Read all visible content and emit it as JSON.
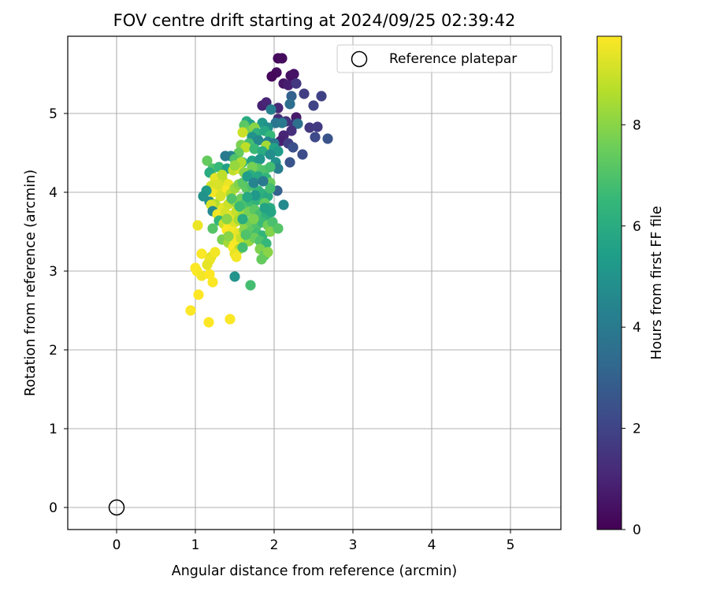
{
  "chart_data": {
    "type": "scatter",
    "title": "FOV centre drift starting at 2024/09/25 02:39:42",
    "xlabel": "Angular distance from reference (arcmin)",
    "ylabel": "Rotation from reference (arcmin)",
    "xlim": [
      -0.62,
      5.64
    ],
    "ylim": [
      -0.28,
      5.98
    ],
    "xticks": [
      0,
      1,
      2,
      3,
      4,
      5
    ],
    "yticks": [
      0,
      1,
      2,
      3,
      4,
      5
    ],
    "grid": true,
    "legend": {
      "location": "top-right",
      "entries": [
        "Reference platepar"
      ]
    },
    "colorbar": {
      "label": "Hours from first FF file",
      "range": [
        0,
        9.75
      ],
      "ticks": [
        0,
        2,
        4,
        6,
        8
      ],
      "colormap": "viridis",
      "stops": [
        "#440154",
        "#482878",
        "#3e4989",
        "#31688e",
        "#26828e",
        "#1f9e89",
        "#35b779",
        "#6ece58",
        "#b5de2b",
        "#fde725"
      ]
    },
    "reference_point": {
      "x": 0,
      "y": 0,
      "label": "Reference platepar"
    },
    "series": [
      {
        "values": [
          [
            2.05,
            5.7,
            0.2
          ],
          [
            2.1,
            5.7,
            0.3
          ],
          [
            2.03,
            5.52,
            0.3
          ],
          [
            1.97,
            5.47,
            0.2
          ],
          [
            2.21,
            5.48,
            0.4
          ],
          [
            2.25,
            5.5,
            0.5
          ],
          [
            2.12,
            5.38,
            0.6
          ],
          [
            2.18,
            5.36,
            0.8
          ],
          [
            2.28,
            5.38,
            1.6
          ],
          [
            2.38,
            5.25,
            1.8
          ],
          [
            2.6,
            5.22,
            1.9
          ],
          [
            2.22,
            5.22,
            3.0
          ],
          [
            2.2,
            5.12,
            3.5
          ],
          [
            1.85,
            5.1,
            0.9
          ],
          [
            1.9,
            5.14,
            1.0
          ],
          [
            2.05,
            5.07,
            1.1
          ],
          [
            1.96,
            5.05,
            4.2
          ],
          [
            2.5,
            5.1,
            2.0
          ],
          [
            2.28,
            4.95,
            0.7
          ],
          [
            2.05,
            4.93,
            1.2
          ],
          [
            2.15,
            4.9,
            1.4
          ],
          [
            2.25,
            4.86,
            1.5
          ],
          [
            2.45,
            4.82,
            1.6
          ],
          [
            2.55,
            4.83,
            1.7
          ],
          [
            2.3,
            4.87,
            3.6
          ],
          [
            2.02,
            4.88,
            3.8
          ],
          [
            2.1,
            4.88,
            4.0
          ],
          [
            2.22,
            4.78,
            1.3
          ],
          [
            2.12,
            4.72,
            1.0
          ],
          [
            2.08,
            4.65,
            0.9
          ],
          [
            2.52,
            4.7,
            2.2
          ],
          [
            2.68,
            4.68,
            2.5
          ],
          [
            2.18,
            4.62,
            1.8
          ],
          [
            2.24,
            4.57,
            2.4
          ],
          [
            2.36,
            4.48,
            2.3
          ],
          [
            2.2,
            4.38,
            2.6
          ],
          [
            2.04,
            4.02,
            3.0
          ],
          [
            2.12,
            3.84,
            4.6
          ],
          [
            1.65,
            4.9,
            6.0
          ],
          [
            1.7,
            4.86,
            5.5
          ],
          [
            1.85,
            4.88,
            5.2
          ],
          [
            1.92,
            4.82,
            4.8
          ],
          [
            1.62,
            4.85,
            7.2
          ],
          [
            1.68,
            4.78,
            7.6
          ],
          [
            1.6,
            4.76,
            9.0
          ],
          [
            1.75,
            4.82,
            8.0
          ],
          [
            1.78,
            4.75,
            6.2
          ],
          [
            1.88,
            4.78,
            5.8
          ],
          [
            1.95,
            4.72,
            6.5
          ],
          [
            1.72,
            4.7,
            5.0
          ],
          [
            1.8,
            4.66,
            4.6
          ],
          [
            1.92,
            4.64,
            4.4
          ],
          [
            2.0,
            4.62,
            3.9
          ],
          [
            1.68,
            4.62,
            6.8
          ],
          [
            1.58,
            4.6,
            7.8
          ],
          [
            1.64,
            4.57,
            8.8
          ],
          [
            1.9,
            4.59,
            8.4
          ],
          [
            2.0,
            4.56,
            5.6
          ],
          [
            2.05,
            4.52,
            5.3
          ],
          [
            1.75,
            4.55,
            6.6
          ],
          [
            1.85,
            4.52,
            6.0
          ],
          [
            1.95,
            4.48,
            4.8
          ],
          [
            1.55,
            4.5,
            7.4
          ],
          [
            1.45,
            4.46,
            4.5
          ],
          [
            1.38,
            4.46,
            4.0
          ],
          [
            1.5,
            4.42,
            7.0
          ],
          [
            1.6,
            4.38,
            6.4
          ],
          [
            1.72,
            4.4,
            5.6
          ],
          [
            1.82,
            4.42,
            5.1
          ],
          [
            2.02,
            4.38,
            4.9
          ],
          [
            2.05,
            4.3,
            4.2
          ],
          [
            1.8,
            4.3,
            7.2
          ],
          [
            1.72,
            4.32,
            7.7
          ],
          [
            1.88,
            4.28,
            7.0
          ],
          [
            1.95,
            4.32,
            6.8
          ],
          [
            1.15,
            4.4,
            7.4
          ],
          [
            1.22,
            4.3,
            7.0
          ],
          [
            1.3,
            4.32,
            6.5
          ],
          [
            1.4,
            4.3,
            5.5
          ],
          [
            1.48,
            4.28,
            8.8
          ],
          [
            1.55,
            4.3,
            9.2
          ],
          [
            1.58,
            4.38,
            8.6
          ],
          [
            1.5,
            4.34,
            8.2
          ],
          [
            1.62,
            4.25,
            8.0
          ],
          [
            1.7,
            4.22,
            6.2
          ],
          [
            1.8,
            4.2,
            5.8
          ],
          [
            1.9,
            4.18,
            6.4
          ],
          [
            1.95,
            4.12,
            7.5
          ],
          [
            1.18,
            4.25,
            6.0
          ],
          [
            1.25,
            4.18,
            9.4
          ],
          [
            1.3,
            4.12,
            9.6
          ],
          [
            1.35,
            4.15,
            9.0
          ],
          [
            1.42,
            4.1,
            9.5
          ],
          [
            1.38,
            4.02,
            9.7
          ],
          [
            1.28,
            4.05,
            9.3
          ],
          [
            1.2,
            4.08,
            9.1
          ],
          [
            1.22,
            4.0,
            9.6
          ],
          [
            1.32,
            3.95,
            9.2
          ],
          [
            1.45,
            3.98,
            8.7
          ],
          [
            1.5,
            4.05,
            8.3
          ],
          [
            1.55,
            4.1,
            7.9
          ],
          [
            1.65,
            4.05,
            7.3
          ],
          [
            1.72,
            4.08,
            6.9
          ],
          [
            1.8,
            4.02,
            6.5
          ],
          [
            1.85,
            3.98,
            6.2
          ],
          [
            1.92,
            3.95,
            5.9
          ],
          [
            1.95,
            4.05,
            6.8
          ],
          [
            1.14,
            4.02,
            5.3
          ],
          [
            1.1,
            3.95,
            5.0
          ],
          [
            1.18,
            3.88,
            4.8
          ],
          [
            1.25,
            3.85,
            8.6
          ],
          [
            1.35,
            3.8,
            9.4
          ],
          [
            1.42,
            3.85,
            9.0
          ],
          [
            1.5,
            3.88,
            8.2
          ],
          [
            1.58,
            3.92,
            7.6
          ],
          [
            1.62,
            3.85,
            7.0
          ],
          [
            1.7,
            3.88,
            6.6
          ],
          [
            1.78,
            3.9,
            6.3
          ],
          [
            1.88,
            3.86,
            7.4
          ],
          [
            1.95,
            3.8,
            6.0
          ],
          [
            1.2,
            3.84,
            9.2
          ],
          [
            1.22,
            3.76,
            4.6
          ],
          [
            1.28,
            3.72,
            9.5
          ],
          [
            1.32,
            3.7,
            9.7
          ],
          [
            1.38,
            3.74,
            9.1
          ],
          [
            1.45,
            3.7,
            9.3
          ],
          [
            1.52,
            3.76,
            8.9
          ],
          [
            1.6,
            3.72,
            8.4
          ],
          [
            1.68,
            3.75,
            7.7
          ],
          [
            1.75,
            3.78,
            7.2
          ],
          [
            1.82,
            3.72,
            6.8
          ],
          [
            1.9,
            3.7,
            6.2
          ],
          [
            1.96,
            3.75,
            5.7
          ],
          [
            1.3,
            3.64,
            6.4
          ],
          [
            1.36,
            3.6,
            9.0
          ],
          [
            1.42,
            3.58,
            9.5
          ],
          [
            1.5,
            3.62,
            9.2
          ],
          [
            1.55,
            3.65,
            8.5
          ],
          [
            1.62,
            3.6,
            8.1
          ],
          [
            1.7,
            3.62,
            7.5
          ],
          [
            1.78,
            3.58,
            7.0
          ],
          [
            1.85,
            3.62,
            6.6
          ],
          [
            1.92,
            3.58,
            7.6
          ],
          [
            1.98,
            3.62,
            6.9
          ],
          [
            1.22,
            3.54,
            7.1
          ],
          [
            1.4,
            3.52,
            9.8
          ],
          [
            1.48,
            3.5,
            9.6
          ],
          [
            1.55,
            3.48,
            9.4
          ],
          [
            1.62,
            3.52,
            8.0
          ],
          [
            1.7,
            3.5,
            7.3
          ],
          [
            1.78,
            3.48,
            6.8
          ],
          [
            1.85,
            3.45,
            6.4
          ],
          [
            1.95,
            3.5,
            7.9
          ],
          [
            2.05,
            3.54,
            7.1
          ],
          [
            1.34,
            3.4,
            7.7
          ],
          [
            1.42,
            3.36,
            8.4
          ],
          [
            1.5,
            3.38,
            9.6
          ],
          [
            1.58,
            3.42,
            8.9
          ],
          [
            1.68,
            3.38,
            8.2
          ],
          [
            1.75,
            3.42,
            7.5
          ],
          [
            1.82,
            3.38,
            7.0
          ],
          [
            1.9,
            3.35,
            6.5
          ],
          [
            1.48,
            3.3,
            9.7
          ],
          [
            1.56,
            3.28,
            8.6
          ],
          [
            1.82,
            3.28,
            7.8
          ],
          [
            1.88,
            3.2,
            7.3
          ],
          [
            1.92,
            3.24,
            8.0
          ],
          [
            1.84,
            3.15,
            7.4
          ],
          [
            1.5,
            3.22,
            9.4
          ],
          [
            1.52,
            3.18,
            9.6
          ],
          [
            1.6,
            3.3,
            6.8
          ],
          [
            1.08,
            3.22,
            9.7
          ],
          [
            1.2,
            3.18,
            9.3
          ],
          [
            1.25,
            3.24,
            9.6
          ],
          [
            1.18,
            3.14,
            9.5
          ],
          [
            1.0,
            3.04,
            9.8
          ],
          [
            1.02,
            3.0,
            9.7
          ],
          [
            1.08,
            2.94,
            9.6
          ],
          [
            1.18,
            2.96,
            9.8
          ],
          [
            1.22,
            2.86,
            9.7
          ],
          [
            1.5,
            2.93,
            5.0
          ],
          [
            1.7,
            2.82,
            6.8
          ],
          [
            1.04,
            2.7,
            9.8
          ],
          [
            0.94,
            2.5,
            9.7
          ],
          [
            1.17,
            2.35,
            9.8
          ],
          [
            1.44,
            2.39,
            9.7
          ],
          [
            1.03,
            3.58,
            9.5
          ],
          [
            1.15,
            3.08,
            9.4
          ],
          [
            1.28,
            4.1,
            9.2
          ],
          [
            1.34,
            4.22,
            8.8
          ],
          [
            1.6,
            4.12,
            7.2
          ],
          [
            1.66,
            4.2,
            5.4
          ],
          [
            1.74,
            4.12,
            4.4
          ],
          [
            1.86,
            4.14,
            4.0
          ],
          [
            1.76,
            3.96,
            5.2
          ],
          [
            1.66,
            3.94,
            5.8
          ],
          [
            1.56,
            3.82,
            6.6
          ],
          [
            1.46,
            3.92,
            7.0
          ],
          [
            1.4,
            3.66,
            8.0
          ],
          [
            1.6,
            3.66,
            6.0
          ],
          [
            1.74,
            3.66,
            7.8
          ],
          [
            1.88,
            3.8,
            5.6
          ],
          [
            1.42,
            3.44,
            8.0
          ],
          [
            1.64,
            3.46,
            7.0
          ]
        ]
      }
    ]
  }
}
